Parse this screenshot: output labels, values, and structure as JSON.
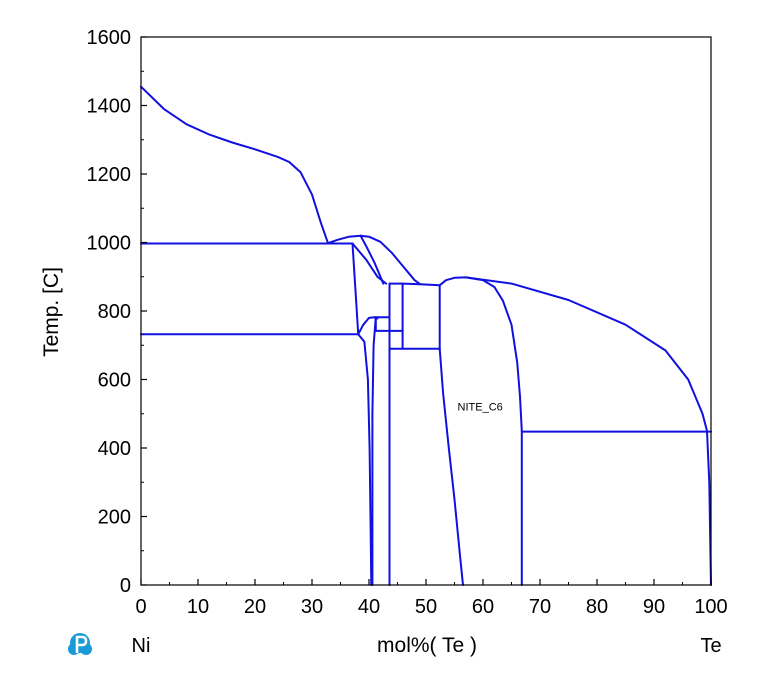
{
  "chart_data": {
    "type": "line",
    "title": "",
    "xlabel": "mol%(  Te  )",
    "ylabel": "Temp.  [C]",
    "xlim": [
      0,
      100
    ],
    "ylim": [
      0,
      1600
    ],
    "x_ticks": [
      "0",
      "10",
      "20",
      "30",
      "40",
      "50",
      "60",
      "70",
      "80",
      "90",
      "100"
    ],
    "y_ticks": [
      "0",
      "200",
      "400",
      "600",
      "800",
      "1000",
      "1200",
      "1400",
      "1600"
    ],
    "left_component": "Ni",
    "right_component": "Te",
    "annotations": [
      {
        "text": "NITE_C6",
        "x": 59.5,
        "y": 510
      }
    ],
    "line_color": "#1010e0",
    "grid": false,
    "series": [
      {
        "points": [
          [
            0,
            1455
          ],
          [
            4,
            1390
          ],
          [
            8,
            1345
          ],
          [
            12,
            1315
          ],
          [
            16,
            1292
          ],
          [
            20,
            1272
          ],
          [
            24,
            1250
          ],
          [
            26,
            1235
          ],
          [
            28,
            1205
          ],
          [
            30,
            1140
          ],
          [
            31.5,
            1060
          ],
          [
            32.8,
            998
          ]
        ]
      },
      {
        "points": [
          [
            32.8,
            998
          ],
          [
            34.5,
            1008
          ],
          [
            36.5,
            1017
          ],
          [
            38.5,
            1020
          ],
          [
            40,
            1017
          ],
          [
            42,
            1002
          ],
          [
            44,
            970
          ],
          [
            46,
            930
          ],
          [
            48,
            890
          ],
          [
            49,
            878
          ]
        ]
      },
      {
        "points": [
          [
            38.5,
            1020
          ],
          [
            39.5,
            990
          ],
          [
            41,
            940
          ],
          [
            42.5,
            880
          ]
        ]
      },
      {
        "points": [
          [
            0,
            997
          ],
          [
            37.1,
            997
          ]
        ]
      },
      {
        "points": [
          [
            37.1,
            997
          ],
          [
            38.1,
            734
          ]
        ]
      },
      {
        "points": [
          [
            0,
            732
          ],
          [
            38.1,
            732
          ]
        ]
      },
      {
        "points": [
          [
            37.1,
            997
          ],
          [
            39.5,
            950
          ],
          [
            41.5,
            900
          ],
          [
            43,
            880
          ]
        ]
      },
      {
        "points": [
          [
            38.1,
            732
          ],
          [
            39,
            760
          ],
          [
            40,
            780
          ],
          [
            41,
            782
          ],
          [
            41.5,
            778
          ]
        ]
      },
      {
        "points": [
          [
            38.1,
            732
          ],
          [
            39.2,
            710
          ],
          [
            39.8,
            600
          ],
          [
            40.1,
            400
          ],
          [
            40.3,
            150
          ],
          [
            40.4,
            0
          ]
        ]
      },
      {
        "points": [
          [
            41.2,
            782
          ],
          [
            40.8,
            700
          ],
          [
            40.6,
            500
          ],
          [
            40.6,
            0
          ]
        ]
      },
      {
        "points": [
          [
            41.2,
            782
          ],
          [
            43.6,
            782
          ]
        ]
      },
      {
        "points": [
          [
            41.2,
            742
          ],
          [
            45.9,
            742
          ]
        ]
      },
      {
        "points": [
          [
            41.2,
            782
          ],
          [
            41.2,
            742
          ]
        ]
      },
      {
        "points": [
          [
            43.6,
            880
          ],
          [
            43.6,
            0
          ]
        ]
      },
      {
        "points": [
          [
            43.6,
            880
          ],
          [
            45.9,
            880
          ]
        ]
      },
      {
        "points": [
          [
            43.6,
            690
          ],
          [
            52.4,
            690
          ]
        ]
      },
      {
        "points": [
          [
            45.9,
            880
          ],
          [
            45.9,
            690
          ]
        ]
      },
      {
        "points": [
          [
            45.9,
            880
          ],
          [
            49,
            878
          ],
          [
            52.4,
            875
          ]
        ]
      },
      {
        "points": [
          [
            52.4,
            875
          ],
          [
            53.5,
            890
          ],
          [
            55,
            897
          ],
          [
            57,
            898
          ]
        ]
      },
      {
        "points": [
          [
            52.4,
            875
          ],
          [
            52.4,
            690
          ]
        ]
      },
      {
        "points": [
          [
            52.4,
            690
          ],
          [
            53,
            560
          ],
          [
            54,
            400
          ],
          [
            55,
            250
          ],
          [
            56,
            80
          ],
          [
            56.5,
            0
          ]
        ]
      },
      {
        "points": [
          [
            57,
            898
          ],
          [
            60,
            890
          ],
          [
            62,
            870
          ],
          [
            63.5,
            830
          ],
          [
            65,
            760
          ],
          [
            66,
            650
          ],
          [
            66.5,
            550
          ],
          [
            66.8,
            450
          ],
          [
            66.8,
            0
          ]
        ]
      },
      {
        "points": [
          [
            57,
            898
          ],
          [
            65,
            880
          ],
          [
            75,
            832
          ],
          [
            85,
            760
          ],
          [
            92,
            685
          ],
          [
            96,
            600
          ],
          [
            98.5,
            500
          ],
          [
            99.3,
            450
          ],
          [
            99.7,
            300
          ],
          [
            99.9,
            100
          ],
          [
            100,
            0
          ]
        ]
      },
      {
        "points": [
          [
            66.8,
            448
          ],
          [
            100,
            448
          ]
        ]
      }
    ]
  }
}
